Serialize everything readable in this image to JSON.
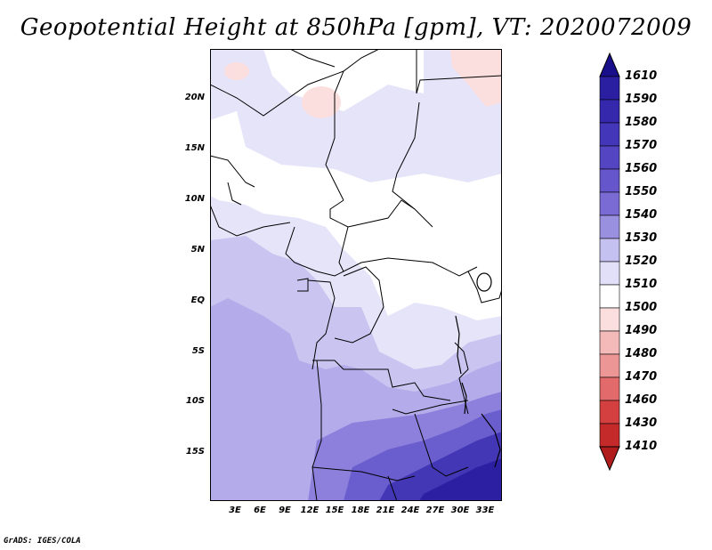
{
  "title": "Geopotential Height at 850hPa [gpm], VT: 2020072009",
  "credit": "GrADS: IGES/COLA",
  "map": {
    "lat_labels": [
      "20N",
      "15N",
      "10N",
      "5N",
      "EQ",
      "5S",
      "10S",
      "15S"
    ],
    "lon_labels": [
      "3E",
      "6E",
      "9E",
      "12E",
      "15E",
      "18E",
      "21E",
      "24E",
      "27E",
      "30E",
      "33E"
    ]
  },
  "colorbar": {
    "levels": [
      "1610",
      "1590",
      "1580",
      "1570",
      "1560",
      "1550",
      "1540",
      "1530",
      "1520",
      "1510",
      "1500",
      "1490",
      "1480",
      "1470",
      "1460",
      "1430",
      "1410"
    ],
    "colors": [
      "#1a0f8a",
      "#2a1fa0",
      "#3628ad",
      "#4436b8",
      "#5445c2",
      "#6656cc",
      "#7a6bd4",
      "#9a90e0",
      "#c4c0ef",
      "#e2e0f8",
      "#ffffff",
      "#fbdede",
      "#f4baba",
      "#ec9696",
      "#e26a6a",
      "#d44040",
      "#c42a2a"
    ],
    "top_color": "#1a0f8a",
    "bottom_color": "#b01c1c"
  }
}
